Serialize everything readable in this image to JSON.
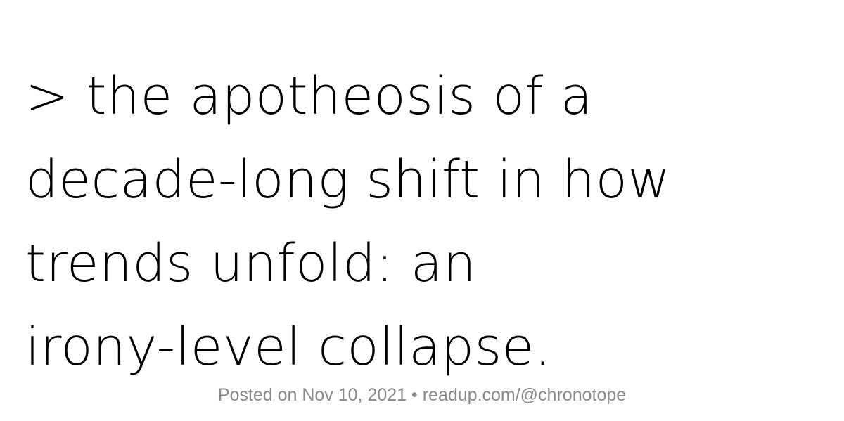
{
  "quote": {
    "lines": [
      "> the apotheosis of a",
      "decade-long shift in how",
      "trends unfold: an",
      "irony-level collapse."
    ]
  },
  "footer": {
    "posted": "Posted on Nov 10, 2021",
    "separator": " • ",
    "link": "readup.com/@chronotope"
  },
  "colors": {
    "background": "#ffffff",
    "quote_text": "#000000",
    "footer_text": "#8a8a8a"
  }
}
